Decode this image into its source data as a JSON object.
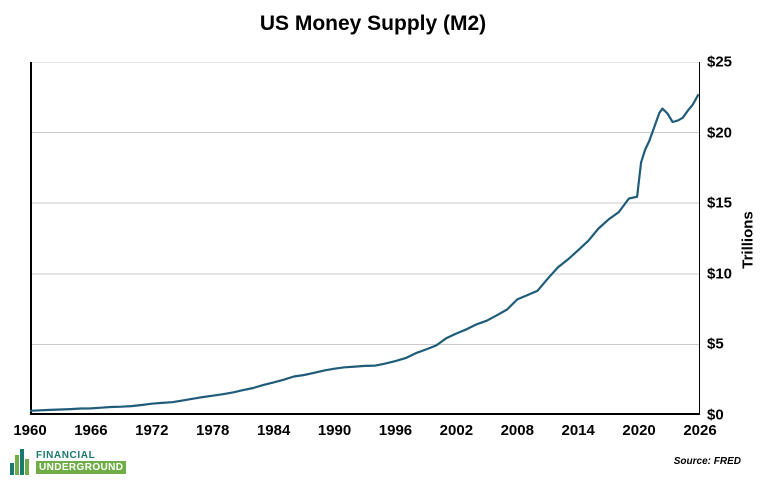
{
  "chart_data": {
    "type": "line",
    "title": "US Money Supply (M2)",
    "xlabel": "",
    "ylabel": "Trillions",
    "source": "Source: FRED",
    "xlim": [
      1960,
      2026
    ],
    "ylim": [
      0,
      25
    ],
    "x_ticks": [
      1960,
      1966,
      1972,
      1978,
      1984,
      1990,
      1996,
      2002,
      2008,
      2014,
      2020,
      2026
    ],
    "y_ticks": [
      0,
      5,
      10,
      15,
      20,
      25
    ],
    "y_tick_labels": [
      "$0",
      "$5",
      "$10",
      "$15",
      "$20",
      "$25"
    ],
    "grid": "horizontal",
    "legend": "none",
    "line_color": "#1f5c7a",
    "grid_color": "#c8c8c8",
    "axis_color": "#000000",
    "series": [
      {
        "name": "M2 Money Supply (trillions USD)",
        "x": [
          1960,
          1961,
          1962,
          1963,
          1964,
          1965,
          1966,
          1967,
          1968,
          1969,
          1970,
          1971,
          1972,
          1973,
          1974,
          1975,
          1976,
          1977,
          1978,
          1979,
          1980,
          1981,
          1982,
          1983,
          1984,
          1985,
          1986,
          1987,
          1988,
          1989,
          1990,
          1991,
          1992,
          1993,
          1994,
          1995,
          1996,
          1997,
          1998,
          1999,
          2000,
          2001,
          2002,
          2003,
          2004,
          2005,
          2006,
          2007,
          2008,
          2009,
          2010,
          2011,
          2012,
          2013,
          2014,
          2015,
          2016,
          2017,
          2018,
          2019,
          2019.8,
          2020.2,
          2020.6,
          2021,
          2021.5,
          2022,
          2022.3,
          2022.8,
          2023.3,
          2023.8,
          2024.3,
          2024.8,
          2025.3,
          2025.8
        ],
        "values": [
          0.3,
          0.33,
          0.36,
          0.39,
          0.42,
          0.46,
          0.47,
          0.52,
          0.57,
          0.59,
          0.63,
          0.71,
          0.8,
          0.86,
          0.91,
          1.02,
          1.15,
          1.27,
          1.37,
          1.47,
          1.6,
          1.76,
          1.91,
          2.13,
          2.31,
          2.5,
          2.73,
          2.83,
          2.99,
          3.16,
          3.28,
          3.38,
          3.43,
          3.48,
          3.5,
          3.64,
          3.82,
          4.03,
          4.38,
          4.64,
          4.92,
          5.43,
          5.77,
          6.07,
          6.42,
          6.68,
          7.07,
          7.47,
          8.19,
          8.49,
          8.8,
          9.65,
          10.45,
          11.02,
          11.67,
          12.34,
          13.21,
          13.85,
          14.37,
          15.33,
          15.45,
          17.9,
          18.8,
          19.4,
          20.4,
          21.4,
          21.7,
          21.35,
          20.75,
          20.85,
          21.05,
          21.55,
          22.0,
          22.65
        ]
      }
    ]
  },
  "logo": {
    "line1": "FINANCIAL",
    "line2": "UNDERGROUND",
    "teal": "#1a7a6d",
    "green": "#70ad47"
  }
}
